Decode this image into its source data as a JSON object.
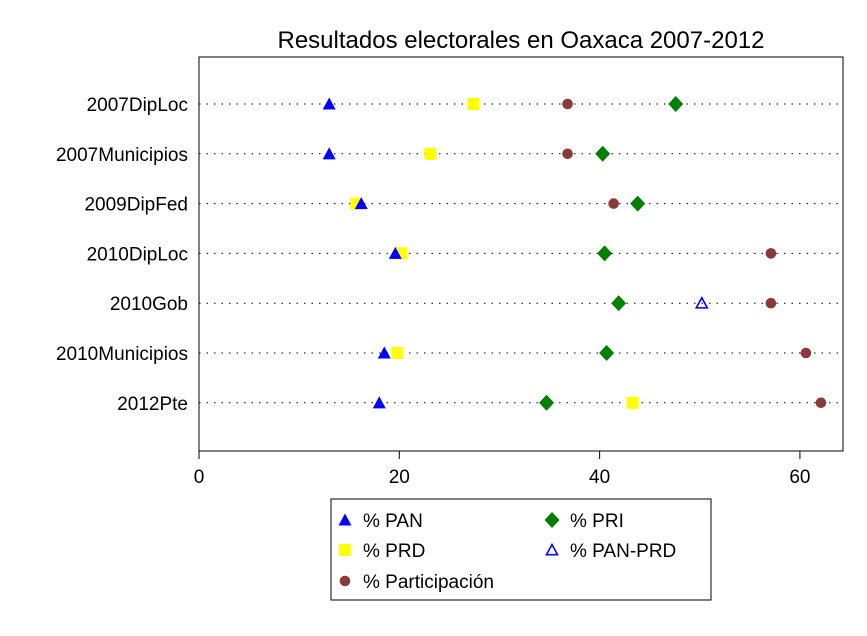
{
  "chart_data": {
    "type": "scatter",
    "title": "Resultados electorales en Oaxaca 2007-2012",
    "xlabel": "",
    "ylabel": "",
    "xlim": [
      0,
      64.3
    ],
    "xticks": [
      0,
      20,
      40,
      60
    ],
    "grid": "dotted horizontal lines per category",
    "legend_position": "bottom",
    "categories": [
      "2007DipLoc",
      "2007Municipios",
      "2009DipFed",
      "2010DipLoc",
      "2010Gob",
      "2010Municipios",
      "2012Pte"
    ],
    "series": [
      {
        "name": "% PAN",
        "marker": "triangle",
        "filled": true,
        "color": "#0000FF",
        "values": [
          13.0,
          13.0,
          16.2,
          19.6,
          null,
          18.5,
          18.0
        ]
      },
      {
        "name": "% PRI",
        "marker": "diamond",
        "filled": true,
        "color": "#008000",
        "values": [
          47.6,
          40.3,
          43.8,
          40.5,
          41.9,
          40.7,
          34.7
        ]
      },
      {
        "name": "% PRD",
        "marker": "square",
        "filled": true,
        "color": "#FFFF00",
        "values": [
          27.4,
          23.1,
          15.7,
          20.2,
          null,
          19.8,
          43.3
        ]
      },
      {
        "name": "% PAN-PRD",
        "marker": "triangle",
        "filled": false,
        "color": "#0000FF",
        "values": [
          null,
          null,
          null,
          null,
          50.2,
          null,
          null
        ]
      },
      {
        "name": "% Participación",
        "marker": "circle",
        "filled": true,
        "color": "#8B3A3A",
        "values": [
          36.8,
          36.8,
          41.4,
          57.1,
          57.1,
          60.6,
          62.1
        ]
      }
    ]
  }
}
